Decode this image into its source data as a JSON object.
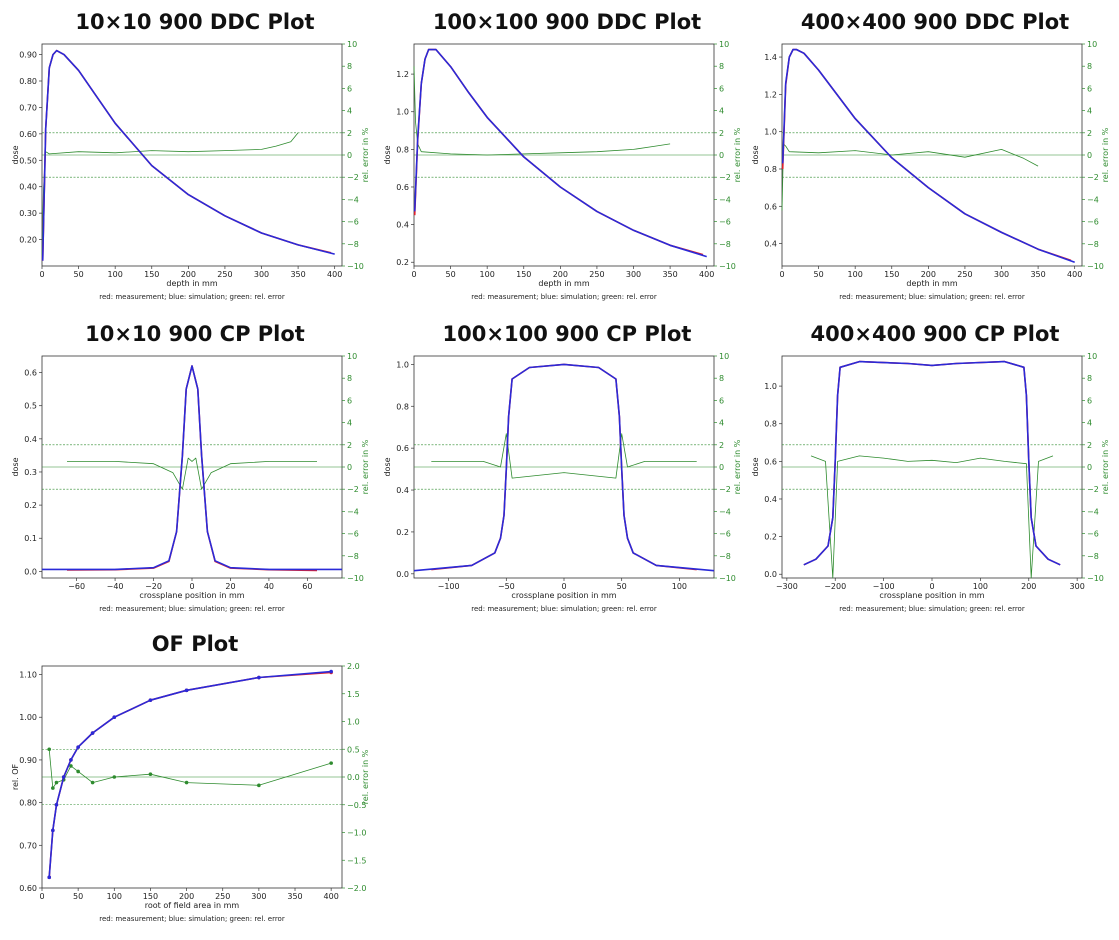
{
  "caption": "red: measurement; blue: simulation; green: rel. error",
  "colors": {
    "measurement": "#e0202a",
    "simulation": "#2a2ad8",
    "error": "#2e8b2e"
  },
  "chart_data": [
    {
      "id": "ddc10",
      "type": "line",
      "title": "10×10 900 DDC Plot",
      "xlabel": "depth in mm",
      "ylabel": "dose",
      "y2label": "rel. error in %",
      "xlim": [
        0,
        410
      ],
      "ylim": [
        0.1,
        0.94
      ],
      "y2lim": [
        -10,
        10
      ],
      "xticks": [
        0,
        50,
        100,
        150,
        200,
        250,
        300,
        350,
        400
      ],
      "yticks": [
        0.2,
        0.3,
        0.4,
        0.5,
        0.6,
        0.7,
        0.8,
        0.9
      ],
      "y2ticks": [
        -10,
        -8,
        -6,
        -4,
        -2,
        0,
        2,
        4,
        6,
        8,
        10
      ],
      "hlines2": [
        2,
        0,
        -2
      ],
      "series": [
        {
          "name": "measurement",
          "x": [
            1,
            5,
            10,
            15,
            20,
            30,
            50,
            75,
            100,
            150,
            200,
            250,
            300,
            350,
            395
          ],
          "y": [
            0.12,
            0.62,
            0.85,
            0.9,
            0.915,
            0.9,
            0.84,
            0.74,
            0.64,
            0.48,
            0.37,
            0.29,
            0.225,
            0.18,
            0.15
          ]
        },
        {
          "name": "simulation",
          "x": [
            1,
            5,
            10,
            15,
            20,
            30,
            50,
            75,
            100,
            150,
            200,
            250,
            300,
            350,
            400
          ],
          "y": [
            0.12,
            0.62,
            0.85,
            0.9,
            0.915,
            0.9,
            0.84,
            0.74,
            0.64,
            0.48,
            0.37,
            0.29,
            0.225,
            0.18,
            0.145
          ]
        },
        {
          "name": "rel. error",
          "axis": "y2",
          "x": [
            0,
            2,
            5,
            10,
            50,
            100,
            150,
            200,
            250,
            300,
            320,
            340,
            350
          ],
          "y": [
            -9,
            -3,
            0.3,
            0.1,
            0.3,
            0.2,
            0.4,
            0.3,
            0.4,
            0.5,
            0.8,
            1.2,
            2
          ]
        }
      ]
    },
    {
      "id": "ddc100",
      "type": "line",
      "title": "100×100 900 DDC Plot",
      "xlabel": "depth in mm",
      "ylabel": "dose",
      "y2label": "rel. error in %",
      "xlim": [
        0,
        410
      ],
      "ylim": [
        0.18,
        1.36
      ],
      "y2lim": [
        -10,
        10
      ],
      "xticks": [
        0,
        50,
        100,
        150,
        200,
        250,
        300,
        350,
        400
      ],
      "yticks": [
        0.2,
        0.4,
        0.6,
        0.8,
        1.0,
        1.2
      ],
      "y2ticks": [
        -10,
        -8,
        -6,
        -4,
        -2,
        0,
        2,
        4,
        6,
        8,
        10
      ],
      "hlines2": [
        2,
        0,
        -2
      ],
      "series": [
        {
          "name": "measurement",
          "x": [
            1,
            5,
            10,
            15,
            20,
            30,
            50,
            75,
            100,
            150,
            200,
            250,
            300,
            350,
            395
          ],
          "y": [
            0.45,
            0.85,
            1.15,
            1.28,
            1.33,
            1.33,
            1.24,
            1.1,
            0.97,
            0.76,
            0.6,
            0.47,
            0.37,
            0.29,
            0.24
          ]
        },
        {
          "name": "simulation",
          "x": [
            1,
            5,
            10,
            15,
            20,
            30,
            50,
            75,
            100,
            150,
            200,
            250,
            300,
            350,
            400
          ],
          "y": [
            0.47,
            0.86,
            1.15,
            1.28,
            1.33,
            1.33,
            1.24,
            1.1,
            0.97,
            0.76,
            0.6,
            0.47,
            0.37,
            0.29,
            0.23
          ]
        },
        {
          "name": "rel. error",
          "axis": "y2",
          "x": [
            0,
            2,
            5,
            10,
            50,
            100,
            150,
            200,
            250,
            300,
            330,
            350
          ],
          "y": [
            8,
            3,
            1,
            0.3,
            0.1,
            0,
            0.1,
            0.2,
            0.3,
            0.5,
            0.8,
            1
          ]
        }
      ]
    },
    {
      "id": "ddc400",
      "type": "line",
      "title": "400×400 900 DDC Plot",
      "xlabel": "depth in mm",
      "ylabel": "dose",
      "y2label": "rel. error in %",
      "xlim": [
        0,
        410
      ],
      "ylim": [
        0.28,
        1.47
      ],
      "y2lim": [
        -10,
        10
      ],
      "xticks": [
        0,
        50,
        100,
        150,
        200,
        250,
        300,
        350,
        400
      ],
      "yticks": [
        0.4,
        0.6,
        0.8,
        1.0,
        1.2,
        1.4
      ],
      "y2ticks": [
        -10,
        -8,
        -6,
        -4,
        -2,
        0,
        2,
        4,
        6,
        8,
        10
      ],
      "hlines2": [
        2,
        0,
        -2
      ],
      "series": [
        {
          "name": "measurement",
          "x": [
            1,
            5,
            10,
            15,
            20,
            30,
            50,
            75,
            100,
            150,
            200,
            250,
            300,
            350,
            395
          ],
          "y": [
            0.8,
            1.25,
            1.4,
            1.44,
            1.44,
            1.42,
            1.33,
            1.2,
            1.07,
            0.86,
            0.7,
            0.56,
            0.46,
            0.37,
            0.31
          ]
        },
        {
          "name": "simulation",
          "x": [
            1,
            5,
            10,
            15,
            20,
            30,
            50,
            75,
            100,
            150,
            200,
            250,
            300,
            350,
            400
          ],
          "y": [
            0.83,
            1.26,
            1.4,
            1.44,
            1.44,
            1.42,
            1.33,
            1.2,
            1.07,
            0.86,
            0.7,
            0.56,
            0.46,
            0.37,
            0.3
          ]
        },
        {
          "name": "rel. error",
          "axis": "y2",
          "x": [
            0,
            2,
            5,
            10,
            50,
            100,
            150,
            200,
            250,
            300,
            330,
            350
          ],
          "y": [
            -5,
            1,
            0.8,
            0.3,
            0.2,
            0.4,
            0,
            0.3,
            -0.2,
            0.5,
            -0.3,
            -1
          ]
        }
      ]
    },
    {
      "id": "cp10",
      "type": "line",
      "title": "10×10 900 CP Plot",
      "xlabel": "crossplane position in mm",
      "ylabel": "dose",
      "y2label": "rel. error in %",
      "xlim": [
        -78,
        78
      ],
      "ylim": [
        -0.02,
        0.65
      ],
      "y2lim": [
        -10,
        10
      ],
      "xticks": [
        -60,
        -40,
        -20,
        0,
        20,
        40,
        60
      ],
      "yticks": [
        0.0,
        0.1,
        0.2,
        0.3,
        0.4,
        0.5,
        0.6
      ],
      "y2ticks": [
        -10,
        -8,
        -6,
        -4,
        -2,
        0,
        2,
        4,
        6,
        8,
        10
      ],
      "hlines2": [
        2,
        0,
        -2
      ],
      "series": [
        {
          "name": "measurement",
          "x": [
            -65,
            -40,
            -20,
            -12,
            -8,
            -5,
            -3,
            0,
            3,
            5,
            8,
            12,
            20,
            40,
            65
          ],
          "y": [
            0.004,
            0.005,
            0.01,
            0.03,
            0.12,
            0.35,
            0.55,
            0.62,
            0.55,
            0.35,
            0.12,
            0.03,
            0.01,
            0.005,
            0.003
          ]
        },
        {
          "name": "simulation",
          "x": [
            -78,
            -40,
            -20,
            -12,
            -8,
            -5,
            -3,
            0,
            3,
            5,
            8,
            12,
            20,
            40,
            78
          ],
          "y": [
            0.006,
            0.006,
            0.011,
            0.032,
            0.12,
            0.35,
            0.55,
            0.62,
            0.55,
            0.35,
            0.12,
            0.032,
            0.011,
            0.006,
            0.006
          ]
        },
        {
          "name": "rel. error",
          "axis": "y2",
          "x": [
            -65,
            -40,
            -20,
            -10,
            -5,
            -2,
            0,
            2,
            5,
            10,
            20,
            40,
            65
          ],
          "y": [
            0.5,
            0.5,
            0.3,
            -0.5,
            -2,
            0.8,
            0.5,
            0.8,
            -2,
            -0.5,
            0.3,
            0.5,
            0.5
          ]
        }
      ]
    },
    {
      "id": "cp100",
      "type": "line",
      "title": "100×100 900 CP Plot",
      "xlabel": "crossplane position in mm",
      "ylabel": "dose",
      "y2label": "rel. error in %",
      "xlim": [
        -130,
        130
      ],
      "ylim": [
        -0.02,
        1.04
      ],
      "y2lim": [
        -10,
        10
      ],
      "xticks": [
        -100,
        -50,
        0,
        50,
        100
      ],
      "yticks": [
        0.0,
        0.2,
        0.4,
        0.6,
        0.8,
        1.0
      ],
      "y2ticks": [
        -10,
        -8,
        -6,
        -4,
        -2,
        0,
        2,
        4,
        6,
        8,
        10
      ],
      "hlines2": [
        2,
        0,
        -2
      ],
      "series": [
        {
          "name": "measurement",
          "x": [
            -115,
            -80,
            -60,
            -55,
            -52,
            -50,
            -48,
            -45,
            -30,
            0,
            30,
            45,
            48,
            50,
            52,
            55,
            60,
            80,
            115
          ],
          "y": [
            0.02,
            0.04,
            0.1,
            0.17,
            0.28,
            0.5,
            0.75,
            0.93,
            0.985,
            1.0,
            0.985,
            0.93,
            0.75,
            0.5,
            0.28,
            0.17,
            0.1,
            0.04,
            0.02
          ]
        },
        {
          "name": "simulation",
          "x": [
            -130,
            -80,
            -60,
            -55,
            -52,
            -50,
            -48,
            -45,
            -30,
            0,
            30,
            45,
            48,
            50,
            52,
            55,
            60,
            80,
            130
          ],
          "y": [
            0.015,
            0.04,
            0.1,
            0.17,
            0.28,
            0.5,
            0.75,
            0.93,
            0.985,
            1.0,
            0.985,
            0.93,
            0.75,
            0.5,
            0.28,
            0.17,
            0.1,
            0.04,
            0.015
          ]
        },
        {
          "name": "rel. error",
          "axis": "y2",
          "x": [
            -115,
            -70,
            -55,
            -50,
            -45,
            0,
            45,
            50,
            55,
            70,
            115
          ],
          "y": [
            0.5,
            0.5,
            0,
            3,
            -1,
            -0.5,
            -1,
            3,
            0,
            0.5,
            0.5
          ]
        }
      ]
    },
    {
      "id": "cp400",
      "type": "line",
      "title": "400×400 900 CP Plot",
      "xlabel": "crossplane position in mm",
      "ylabel": "dose",
      "y2label": "rel. error in %",
      "xlim": [
        -310,
        310
      ],
      "ylim": [
        -0.02,
        1.16
      ],
      "y2lim": [
        -10,
        10
      ],
      "xticks": [
        -300,
        -200,
        -100,
        0,
        100,
        200,
        300
      ],
      "yticks": [
        0.0,
        0.2,
        0.4,
        0.6,
        0.8,
        1.0
      ],
      "y2ticks": [
        -10,
        -8,
        -6,
        -4,
        -2,
        0,
        2,
        4,
        6,
        8,
        10
      ],
      "hlines2": [
        2,
        0,
        -2
      ],
      "series": [
        {
          "name": "measurement",
          "x": [
            -265,
            -240,
            -215,
            -205,
            -200,
            -195,
            -190,
            -150,
            -50,
            0,
            50,
            150,
            190,
            195,
            200,
            205,
            215,
            240,
            265
          ],
          "y": [
            0.05,
            0.08,
            0.15,
            0.3,
            0.6,
            0.95,
            1.1,
            1.13,
            1.12,
            1.11,
            1.12,
            1.13,
            1.1,
            0.95,
            0.6,
            0.3,
            0.15,
            0.08,
            0.05
          ]
        },
        {
          "name": "simulation",
          "x": [
            -265,
            -240,
            -215,
            -205,
            -200,
            -195,
            -190,
            -150,
            -50,
            0,
            50,
            150,
            190,
            195,
            200,
            205,
            215,
            240,
            265
          ],
          "y": [
            0.05,
            0.08,
            0.15,
            0.3,
            0.6,
            0.95,
            1.1,
            1.13,
            1.12,
            1.11,
            1.12,
            1.13,
            1.1,
            0.95,
            0.6,
            0.3,
            0.15,
            0.08,
            0.05
          ]
        },
        {
          "name": "rel. error",
          "axis": "y2",
          "x": [
            -250,
            -220,
            -205,
            -195,
            -150,
            -100,
            -50,
            0,
            50,
            100,
            150,
            195,
            205,
            220,
            250
          ],
          "y": [
            1,
            0.5,
            -10,
            0.5,
            1,
            0.8,
            0.5,
            0.6,
            0.4,
            0.8,
            0.5,
            0.3,
            -10,
            0.5,
            1
          ]
        }
      ]
    },
    {
      "id": "of",
      "type": "line",
      "title": "OF Plot",
      "xlabel": "root of field area in mm",
      "ylabel": "rel. OF",
      "y2label": "rel. error in %",
      "xlim": [
        0,
        415
      ],
      "ylim": [
        0.6,
        1.12
      ],
      "y2lim": [
        -2.0,
        2.0
      ],
      "xticks": [
        0,
        50,
        100,
        150,
        200,
        250,
        300,
        350,
        400
      ],
      "yticks": [
        0.6,
        0.7,
        0.8,
        0.9,
        1.0,
        1.1
      ],
      "y2ticks": [
        -2.0,
        -1.5,
        -1.0,
        -0.5,
        0.0,
        0.5,
        1.0,
        1.5,
        2.0
      ],
      "hlines2": [
        0.5,
        0,
        -0.5
      ],
      "markers": true,
      "series": [
        {
          "name": "measurement",
          "x": [
            10,
            15,
            20,
            30,
            40,
            50,
            70,
            100,
            150,
            200,
            300,
            400
          ],
          "y": [
            0.625,
            0.735,
            0.795,
            0.86,
            0.9,
            0.93,
            0.963,
            1.0,
            1.04,
            1.063,
            1.093,
            1.105
          ]
        },
        {
          "name": "simulation",
          "x": [
            10,
            15,
            20,
            30,
            40,
            50,
            70,
            100,
            150,
            200,
            300,
            400
          ],
          "y": [
            0.625,
            0.735,
            0.795,
            0.86,
            0.9,
            0.93,
            0.963,
            1.0,
            1.04,
            1.063,
            1.093,
            1.107
          ]
        },
        {
          "name": "rel. error",
          "axis": "y2",
          "x": [
            10,
            15,
            20,
            30,
            40,
            50,
            70,
            100,
            150,
            200,
            300,
            400
          ],
          "y": [
            0.5,
            -0.2,
            -0.1,
            -0.05,
            0.2,
            0.1,
            -0.1,
            0,
            0.05,
            -0.1,
            -0.15,
            0.25
          ]
        }
      ]
    }
  ]
}
